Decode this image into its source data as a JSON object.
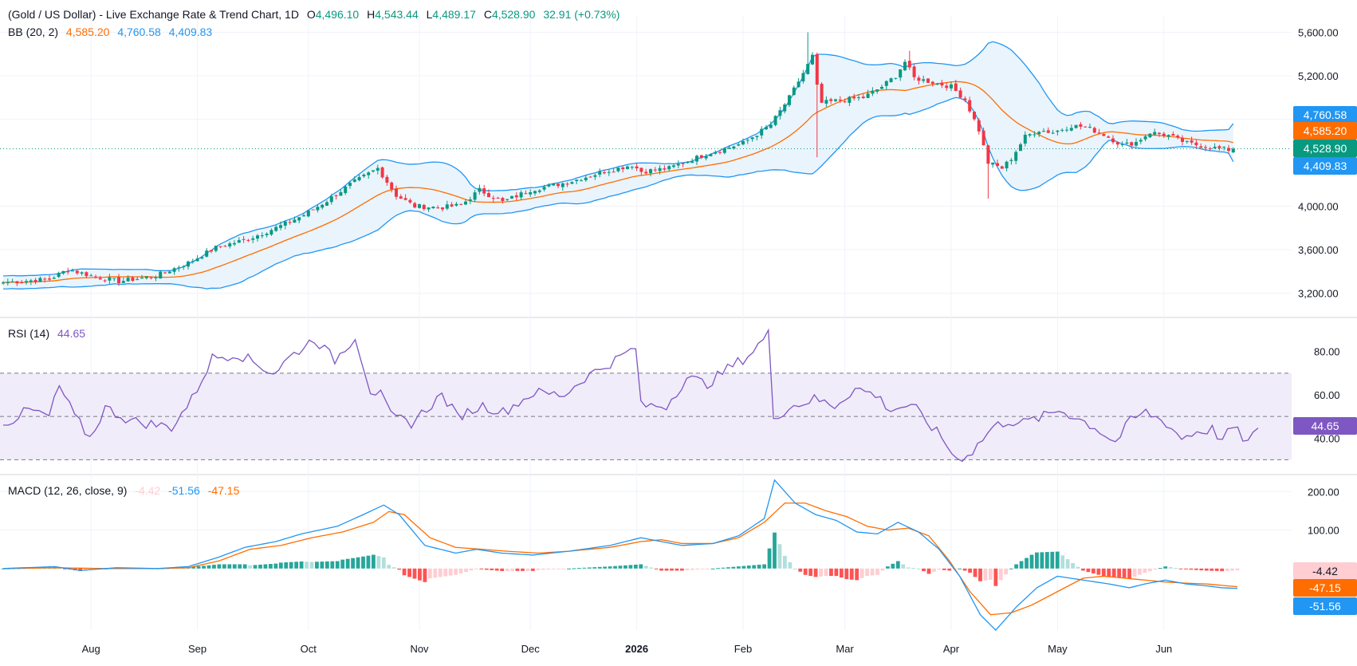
{
  "legend": {
    "title": "(Gold / US Dollar) - Live Exchange Rate & Trend Chart, 1D",
    "ohlc": [
      {
        "k": "O",
        "v": "4,496.10"
      },
      {
        "k": "H",
        "v": "4,543.44"
      },
      {
        "k": "L",
        "v": "4,489.17"
      },
      {
        "k": "C",
        "v": "4,528.90"
      }
    ],
    "change": "32.91 (+0.73%)",
    "bb": {
      "label": "BB (20, 2)",
      "basis": "4,585.20",
      "upper": "4,760.58",
      "lower": "4,409.83"
    },
    "rsi": {
      "label": "RSI (14)",
      "value": "44.65"
    },
    "macd": {
      "label": "MACD (12, 26, close, 9)",
      "hist": "-4.42",
      "macd": "-51.56",
      "signal": "-47.15"
    }
  },
  "badges": {
    "upper": "4,760.58",
    "basis": "4,585.20",
    "close": "4,528.90",
    "lower": "4,409.83",
    "rsi": "44.65",
    "hist": "-4.42",
    "signal": "-47.15",
    "macd": "-51.56"
  },
  "colors": {
    "up": "#089981",
    "down": "#f23645",
    "bb_band": "#2196f3",
    "bb_basis": "#ff6d00",
    "bb_fill": "#eaf4fc",
    "rsi": "#7e57c2",
    "rsi_fill": "#f1ecf9",
    "macd": "#2196f3",
    "signal": "#ff6d00",
    "hist_up_strong": "#26a69a",
    "hist_up_weak": "#b2dfdb",
    "hist_down_strong": "#ff5252",
    "hist_down_weak": "#ffcdd2",
    "axis_text": "#131722"
  },
  "chart_data": [
    {
      "type": "candlestick",
      "title": "(Gold / US Dollar) - Live Exchange Rate & Trend Chart, 1D",
      "overlay": "Bollinger Bands (20, 2)",
      "ylim": [
        3000,
        5750
      ],
      "yticks": [
        "5,600.00",
        "5,200.00",
        "4,800.00",
        "4,000.00",
        "3,600.00",
        "3,200.00"
      ],
      "xticks": [
        "Aug",
        "Sep",
        "Oct",
        "Nov",
        "Dec",
        "2026",
        "Feb",
        "Mar",
        "Apr",
        "May",
        "Jun"
      ],
      "anchors": [
        [
          0,
          3300
        ],
        [
          10,
          3330
        ],
        [
          14,
          3420
        ],
        [
          20,
          3350
        ],
        [
          25,
          3310
        ],
        [
          33,
          3360
        ],
        [
          40,
          3480
        ],
        [
          46,
          3620
        ],
        [
          53,
          3700
        ],
        [
          60,
          3820
        ],
        [
          65,
          3920
        ],
        [
          70,
          4050
        ],
        [
          75,
          4200
        ],
        [
          81,
          4350
        ],
        [
          85,
          4100
        ],
        [
          89,
          4000
        ],
        [
          95,
          3990
        ],
        [
          99,
          4010
        ],
        [
          103,
          4150
        ],
        [
          108,
          4040
        ],
        [
          114,
          4150
        ],
        [
          122,
          4220
        ],
        [
          130,
          4320
        ],
        [
          136,
          4380
        ],
        [
          138,
          4320
        ],
        [
          144,
          4350
        ],
        [
          152,
          4480
        ],
        [
          160,
          4580
        ],
        [
          166,
          4750
        ],
        [
          170,
          5000
        ],
        [
          174,
          5300
        ],
        [
          175,
          5380
        ],
        [
          176,
          5100
        ],
        [
          177,
          4950
        ],
        [
          182,
          4980
        ],
        [
          186,
          5000
        ],
        [
          190,
          5100
        ],
        [
          193,
          5200
        ],
        [
          195,
          5330
        ],
        [
          197,
          5180
        ],
        [
          200,
          5150
        ],
        [
          205,
          5100
        ],
        [
          208,
          4980
        ],
        [
          211,
          4700
        ],
        [
          213,
          4400
        ],
        [
          216,
          4350
        ],
        [
          218,
          4440
        ],
        [
          221,
          4640
        ],
        [
          224,
          4700
        ],
        [
          227,
          4680
        ],
        [
          231,
          4740
        ],
        [
          234,
          4730
        ],
        [
          238,
          4660
        ],
        [
          242,
          4560
        ],
        [
          245,
          4590
        ],
        [
          248,
          4680
        ],
        [
          252,
          4650
        ],
        [
          256,
          4580
        ],
        [
          260,
          4550
        ],
        [
          263,
          4530
        ],
        [
          265,
          4520
        ],
        [
          266,
          4528.9
        ]
      ],
      "close": 4528.9,
      "open": 4496.1,
      "high": 4543.44,
      "low": 4489.17,
      "bb_upper": 4760.58,
      "bb_basis": 4585.2,
      "bb_lower": 4409.83
    },
    {
      "type": "line",
      "title": "RSI (14)",
      "ylim": [
        25,
        95
      ],
      "yticks": [
        "80.00",
        "60.00",
        "40.00"
      ],
      "bands": [
        30,
        50,
        70
      ],
      "anchors": [
        [
          0,
          46
        ],
        [
          5,
          53
        ],
        [
          9,
          50
        ],
        [
          11,
          64
        ],
        [
          14,
          50
        ],
        [
          17,
          40
        ],
        [
          20,
          54
        ],
        [
          25,
          48
        ],
        [
          33,
          45
        ],
        [
          37,
          58
        ],
        [
          41,
          77
        ],
        [
          46,
          79
        ],
        [
          53,
          70
        ],
        [
          56,
          77
        ],
        [
          61,
          86
        ],
        [
          65,
          76
        ],
        [
          69,
          87
        ],
        [
          72,
          62
        ],
        [
          74,
          60
        ],
        [
          76,
          50
        ],
        [
          80,
          47
        ],
        [
          86,
          60
        ],
        [
          89,
          50
        ],
        [
          94,
          55
        ],
        [
          98,
          52
        ],
        [
          104,
          61
        ],
        [
          110,
          60
        ],
        [
          114,
          68
        ],
        [
          120,
          76
        ],
        [
          124,
          82
        ],
        [
          125,
          55
        ],
        [
          130,
          55
        ],
        [
          134,
          68
        ],
        [
          138,
          65
        ],
        [
          142,
          72
        ],
        [
          146,
          78
        ],
        [
          150,
          88
        ],
        [
          151,
          50
        ],
        [
          155,
          55
        ],
        [
          159,
          58
        ],
        [
          163,
          55
        ],
        [
          167,
          63
        ],
        [
          171,
          60
        ],
        [
          174,
          53
        ],
        [
          177,
          55
        ],
        [
          179,
          53
        ],
        [
          184,
          40
        ],
        [
          187,
          30
        ],
        [
          190,
          34
        ],
        [
          194,
          45
        ],
        [
          197,
          48
        ],
        [
          200,
          47
        ],
        [
          204,
          50
        ],
        [
          207,
          53
        ],
        [
          210,
          50
        ],
        [
          214,
          45
        ],
        [
          218,
          38
        ],
        [
          221,
          48
        ],
        [
          224,
          52
        ],
        [
          228,
          47
        ],
        [
          231,
          40
        ],
        [
          234,
          43
        ],
        [
          237,
          44
        ],
        [
          239,
          39
        ],
        [
          241,
          45
        ],
        [
          244,
          38
        ],
        [
          246,
          44.65
        ]
      ],
      "value": 44.65
    },
    {
      "type": "macd",
      "title": "MACD (12, 26, close, 9)",
      "ylim": [
        -160,
        240
      ],
      "yticks": [
        "200.00",
        "100.00"
      ],
      "macd_anchors": [
        [
          0,
          0
        ],
        [
          10,
          5
        ],
        [
          15,
          -5
        ],
        [
          22,
          2
        ],
        [
          30,
          0
        ],
        [
          36,
          5
        ],
        [
          42,
          30
        ],
        [
          47,
          55
        ],
        [
          53,
          70
        ],
        [
          58,
          90
        ],
        [
          65,
          110
        ],
        [
          70,
          140
        ],
        [
          74,
          165
        ],
        [
          77,
          140
        ],
        [
          82,
          60
        ],
        [
          88,
          40
        ],
        [
          92,
          50
        ],
        [
          97,
          40
        ],
        [
          103,
          35
        ],
        [
          110,
          45
        ],
        [
          118,
          60
        ],
        [
          124,
          80
        ],
        [
          128,
          70
        ],
        [
          132,
          60
        ],
        [
          138,
          65
        ],
        [
          143,
          85
        ],
        [
          148,
          130
        ],
        [
          150,
          230
        ],
        [
          154,
          170
        ],
        [
          158,
          140
        ],
        [
          162,
          125
        ],
        [
          166,
          95
        ],
        [
          170,
          90
        ],
        [
          174,
          120
        ],
        [
          178,
          95
        ],
        [
          182,
          50
        ],
        [
          186,
          -20
        ],
        [
          190,
          -120
        ],
        [
          193,
          -160
        ],
        [
          197,
          -100
        ],
        [
          201,
          -50
        ],
        [
          205,
          -20
        ],
        [
          210,
          -30
        ],
        [
          215,
          -40
        ],
        [
          219,
          -50
        ],
        [
          222,
          -40
        ],
        [
          226,
          -30
        ],
        [
          230,
          -40
        ],
        [
          234,
          -45
        ],
        [
          237,
          -50
        ],
        [
          240,
          -51.56
        ]
      ],
      "signal_anchors": [
        [
          0,
          0
        ],
        [
          10,
          2
        ],
        [
          20,
          0
        ],
        [
          30,
          0
        ],
        [
          36,
          2
        ],
        [
          42,
          20
        ],
        [
          48,
          50
        ],
        [
          54,
          60
        ],
        [
          60,
          80
        ],
        [
          66,
          95
        ],
        [
          72,
          120
        ],
        [
          75,
          148
        ],
        [
          78,
          140
        ],
        [
          83,
          80
        ],
        [
          88,
          55
        ],
        [
          93,
          50
        ],
        [
          98,
          45
        ],
        [
          104,
          40
        ],
        [
          110,
          45
        ],
        [
          118,
          55
        ],
        [
          124,
          70
        ],
        [
          128,
          75
        ],
        [
          132,
          65
        ],
        [
          138,
          65
        ],
        [
          143,
          80
        ],
        [
          148,
          120
        ],
        [
          152,
          170
        ],
        [
          156,
          170
        ],
        [
          160,
          150
        ],
        [
          164,
          135
        ],
        [
          168,
          110
        ],
        [
          172,
          100
        ],
        [
          176,
          105
        ],
        [
          180,
          85
        ],
        [
          184,
          20
        ],
        [
          188,
          -60
        ],
        [
          192,
          -120
        ],
        [
          196,
          -115
        ],
        [
          200,
          -95
        ],
        [
          205,
          -60
        ],
        [
          210,
          -25
        ],
        [
          214,
          -20
        ],
        [
          218,
          -25
        ],
        [
          222,
          -30
        ],
        [
          226,
          -35
        ],
        [
          230,
          -38
        ],
        [
          234,
          -40
        ],
        [
          238,
          -45
        ],
        [
          240,
          -47.15
        ]
      ],
      "hist_last": -4.42,
      "macd": -51.56,
      "signal": -47.15
    }
  ]
}
